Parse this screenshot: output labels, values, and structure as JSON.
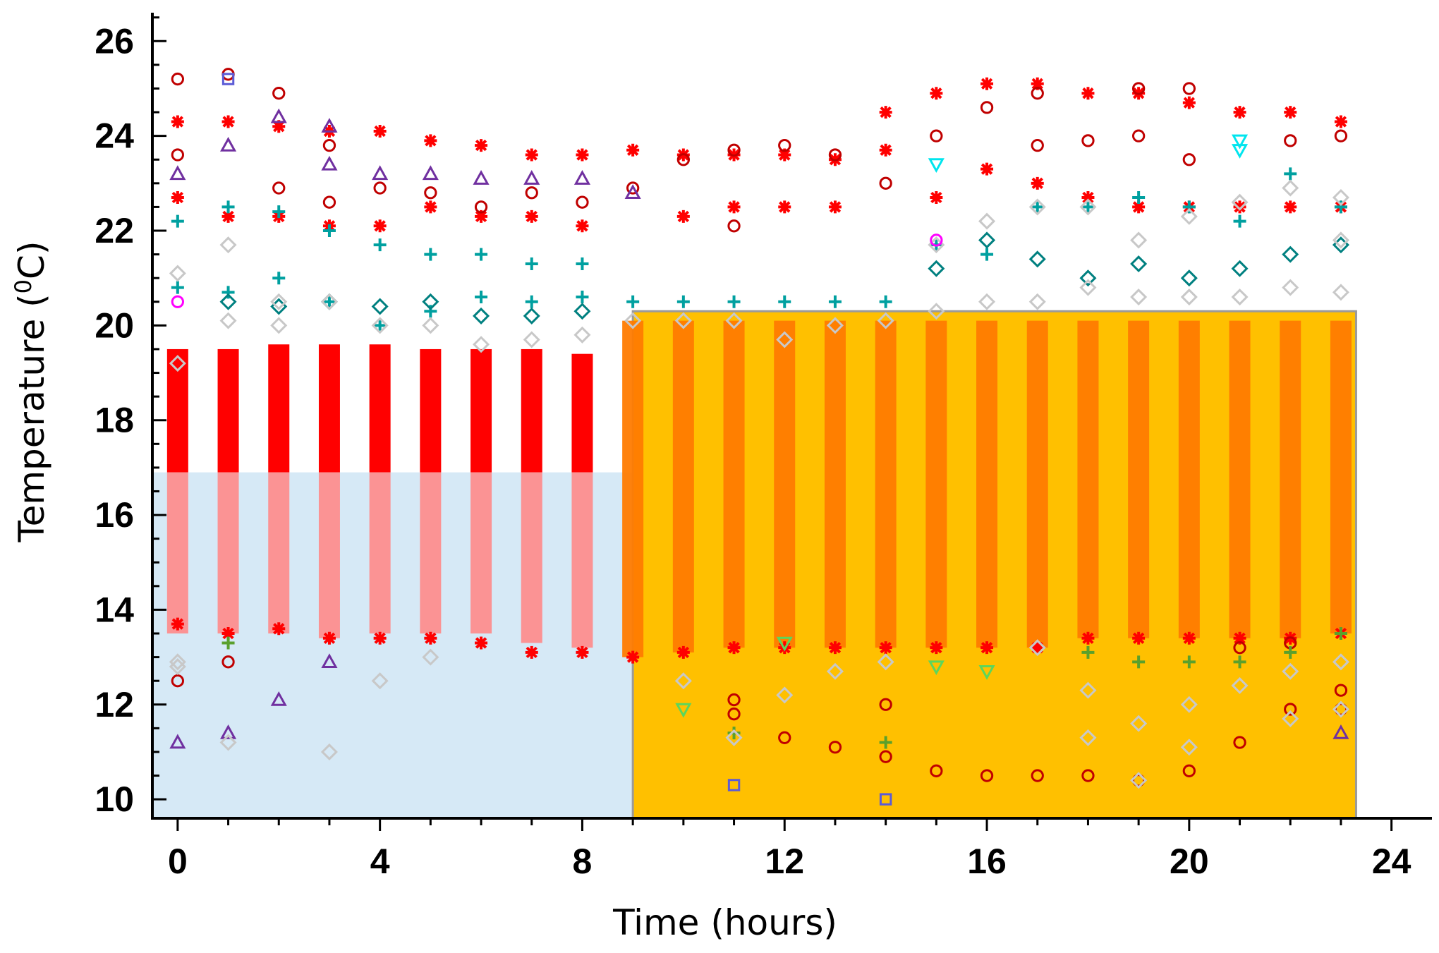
{
  "chart_data": {
    "type": "scatter",
    "title": "",
    "xlabel": "Time (hours)",
    "ylabel_prefix": "Temperature (",
    "ylabel_sup": "0",
    "ylabel_suffix": "C)",
    "xlim": [
      -0.5,
      24.8
    ],
    "ylim": [
      9.6,
      26.6
    ],
    "x_ticks": [
      0,
      4,
      8,
      12,
      16,
      20,
      24
    ],
    "y_ticks": [
      10,
      12,
      14,
      16,
      18,
      20,
      22,
      24,
      26
    ],
    "grid": false,
    "legend": "none",
    "hours": [
      0,
      1,
      2,
      3,
      4,
      5,
      6,
      7,
      8,
      9,
      10,
      11,
      12,
      13,
      14,
      15,
      16,
      17,
      18,
      19,
      20,
      21,
      22,
      23
    ],
    "regions": [
      {
        "x_start": -0.5,
        "x_end": 9.0,
        "y_start": 9.6,
        "y_end": 16.9,
        "color": "#d6e9f6"
      },
      {
        "x_start": 9.0,
        "x_end": 23.3,
        "y_start": 9.6,
        "y_end": 20.3,
        "color": "#ffc000",
        "border": "#9a9a9a"
      }
    ],
    "dense_band": {
      "color_outside": "#ff0000",
      "color_in_cool": "#ff8a8a",
      "color_in_warm": "#ff7b00",
      "low": [
        13.5,
        13.5,
        13.5,
        13.4,
        13.5,
        13.5,
        13.5,
        13.3,
        13.2,
        13.0,
        13.1,
        13.2,
        13.2,
        13.2,
        13.2,
        13.2,
        13.2,
        13.2,
        13.4,
        13.4,
        13.4,
        13.4,
        13.4,
        13.5
      ],
      "high": [
        19.5,
        19.5,
        19.6,
        19.6,
        19.6,
        19.5,
        19.5,
        19.5,
        19.4,
        20.1,
        20.1,
        20.1,
        20.1,
        20.1,
        20.1,
        20.1,
        20.1,
        20.1,
        20.1,
        20.1,
        20.1,
        20.1,
        20.1,
        20.1
      ]
    },
    "series": [
      {
        "marker": "asterisk",
        "color": "#ff0000",
        "values": [
          [
            0,
            24.3
          ],
          [
            0,
            22.7
          ],
          [
            0,
            13.7
          ],
          [
            1,
            24.3
          ],
          [
            1,
            22.3
          ],
          [
            1,
            13.5
          ],
          [
            2,
            24.2
          ],
          [
            2,
            22.3
          ],
          [
            2,
            13.6
          ],
          [
            3,
            24.1
          ],
          [
            3,
            22.1
          ],
          [
            3,
            13.4
          ],
          [
            4,
            24.1
          ],
          [
            4,
            22.1
          ],
          [
            4,
            13.4
          ],
          [
            5,
            23.9
          ],
          [
            5,
            22.5
          ],
          [
            5,
            13.4
          ],
          [
            6,
            23.8
          ],
          [
            6,
            22.3
          ],
          [
            6,
            13.3
          ],
          [
            7,
            23.6
          ],
          [
            7,
            22.3
          ],
          [
            7,
            13.1
          ],
          [
            8,
            23.6
          ],
          [
            8,
            22.1
          ],
          [
            8,
            13.1
          ],
          [
            9,
            23.7
          ],
          [
            9,
            13.0
          ],
          [
            10,
            23.6
          ],
          [
            10,
            22.3
          ],
          [
            10,
            13.1
          ],
          [
            11,
            23.6
          ],
          [
            11,
            22.5
          ],
          [
            11,
            13.2
          ],
          [
            12,
            23.6
          ],
          [
            12,
            22.5
          ],
          [
            12,
            13.2
          ],
          [
            13,
            23.5
          ],
          [
            13,
            22.5
          ],
          [
            13,
            13.2
          ],
          [
            14,
            24.5
          ],
          [
            14,
            23.7
          ],
          [
            14,
            13.2
          ],
          [
            15,
            24.9
          ],
          [
            15,
            22.7
          ],
          [
            15,
            13.2
          ],
          [
            16,
            25.1
          ],
          [
            16,
            23.3
          ],
          [
            16,
            13.2
          ],
          [
            17,
            25.1
          ],
          [
            17,
            23.0
          ],
          [
            17,
            13.2
          ],
          [
            18,
            24.9
          ],
          [
            18,
            22.7
          ],
          [
            18,
            13.4
          ],
          [
            19,
            24.9
          ],
          [
            19,
            22.5
          ],
          [
            19,
            13.4
          ],
          [
            20,
            24.7
          ],
          [
            20,
            22.5
          ],
          [
            20,
            13.4
          ],
          [
            21,
            24.5
          ],
          [
            21,
            22.5
          ],
          [
            21,
            13.4
          ],
          [
            22,
            24.5
          ],
          [
            22,
            22.5
          ],
          [
            22,
            13.4
          ],
          [
            23,
            24.3
          ],
          [
            23,
            22.5
          ],
          [
            23,
            13.5
          ]
        ]
      },
      {
        "marker": "circle",
        "color": "#c00000",
        "values": [
          [
            0,
            25.2
          ],
          [
            0,
            23.6
          ],
          [
            0,
            12.5
          ],
          [
            1,
            25.3
          ],
          [
            1,
            12.9
          ],
          [
            2,
            24.9
          ],
          [
            2,
            22.9
          ],
          [
            3,
            23.8
          ],
          [
            3,
            22.6
          ],
          [
            4,
            22.9
          ],
          [
            5,
            22.8
          ],
          [
            6,
            22.5
          ],
          [
            7,
            22.8
          ],
          [
            8,
            22.6
          ],
          [
            9,
            22.9
          ],
          [
            10,
            23.5
          ],
          [
            11,
            23.7
          ],
          [
            11,
            22.1
          ],
          [
            11,
            12.1
          ],
          [
            11,
            11.8
          ],
          [
            12,
            23.8
          ],
          [
            12,
            11.3
          ],
          [
            13,
            23.6
          ],
          [
            13,
            11.1
          ],
          [
            14,
            23.0
          ],
          [
            14,
            12.0
          ],
          [
            14,
            10.9
          ],
          [
            15,
            24.0
          ],
          [
            15,
            10.6
          ],
          [
            16,
            24.6
          ],
          [
            16,
            10.5
          ],
          [
            17,
            24.9
          ],
          [
            17,
            23.8
          ],
          [
            17,
            10.5
          ],
          [
            18,
            23.9
          ],
          [
            18,
            10.5
          ],
          [
            19,
            25.0
          ],
          [
            19,
            24.0
          ],
          [
            19,
            10.4
          ],
          [
            20,
            25.0
          ],
          [
            20,
            23.5
          ],
          [
            20,
            10.6
          ],
          [
            21,
            11.2
          ],
          [
            21,
            13.2
          ],
          [
            22,
            23.9
          ],
          [
            22,
            11.9
          ],
          [
            22,
            13.3
          ],
          [
            23,
            24.0
          ],
          [
            23,
            12.3
          ],
          [
            23,
            11.9
          ]
        ]
      },
      {
        "marker": "triangle-up",
        "color": "#7030a0",
        "values": [
          [
            0,
            23.2
          ],
          [
            0,
            11.2
          ],
          [
            1,
            23.8
          ],
          [
            1,
            11.4
          ],
          [
            2,
            24.4
          ],
          [
            2,
            12.1
          ],
          [
            3,
            24.2
          ],
          [
            3,
            23.4
          ],
          [
            3,
            12.9
          ],
          [
            4,
            23.2
          ],
          [
            5,
            23.2
          ],
          [
            6,
            23.1
          ],
          [
            7,
            23.1
          ],
          [
            8,
            23.1
          ],
          [
            9,
            22.8
          ],
          [
            23,
            11.4
          ]
        ]
      },
      {
        "marker": "square",
        "color": "#5b5bd6",
        "values": [
          [
            1,
            25.2
          ],
          [
            11,
            10.3
          ],
          [
            14,
            10.0
          ]
        ]
      },
      {
        "marker": "plus",
        "color": "#00a0a0",
        "values": [
          [
            0,
            22.2
          ],
          [
            0,
            20.8
          ],
          [
            1,
            22.5
          ],
          [
            1,
            20.7
          ],
          [
            2,
            22.4
          ],
          [
            2,
            21.0
          ],
          [
            3,
            22.0
          ],
          [
            3,
            20.5
          ],
          [
            4,
            21.7
          ],
          [
            4,
            20.0
          ],
          [
            5,
            21.5
          ],
          [
            5,
            20.3
          ],
          [
            6,
            21.5
          ],
          [
            6,
            20.6
          ],
          [
            7,
            21.3
          ],
          [
            7,
            20.5
          ],
          [
            8,
            21.3
          ],
          [
            8,
            20.6
          ],
          [
            9,
            20.5
          ],
          [
            10,
            20.5
          ],
          [
            11,
            20.5
          ],
          [
            12,
            20.5
          ],
          [
            13,
            20.5
          ],
          [
            14,
            20.5
          ],
          [
            15,
            21.7
          ],
          [
            16,
            21.5
          ],
          [
            17,
            22.5
          ],
          [
            18,
            22.5
          ],
          [
            19,
            22.7
          ],
          [
            20,
            22.5
          ],
          [
            21,
            22.2
          ],
          [
            22,
            23.2
          ],
          [
            23,
            22.5
          ]
        ]
      },
      {
        "marker": "plus",
        "color": "#5aa02c",
        "values": [
          [
            1,
            13.3
          ],
          [
            11,
            11.4
          ],
          [
            14,
            11.2
          ],
          [
            18,
            13.1
          ],
          [
            19,
            12.9
          ],
          [
            20,
            12.9
          ],
          [
            21,
            12.9
          ],
          [
            22,
            13.1
          ],
          [
            23,
            13.5
          ]
        ]
      },
      {
        "marker": "diamond",
        "color": "#008080",
        "values": [
          [
            1,
            20.5
          ],
          [
            2,
            20.4
          ],
          [
            3,
            20.5
          ],
          [
            4,
            20.4
          ],
          [
            5,
            20.5
          ],
          [
            6,
            20.2
          ],
          [
            7,
            20.2
          ],
          [
            8,
            20.3
          ],
          [
            15,
            21.2
          ],
          [
            16,
            21.8
          ],
          [
            17,
            21.4
          ],
          [
            18,
            21.0
          ],
          [
            19,
            21.3
          ],
          [
            20,
            21.0
          ],
          [
            21,
            21.2
          ],
          [
            22,
            21.5
          ],
          [
            23,
            21.7
          ]
        ]
      },
      {
        "marker": "diamond",
        "color": "#c8c8c8",
        "values": [
          [
            0,
            21.1
          ],
          [
            0,
            19.2
          ],
          [
            0,
            12.9
          ],
          [
            0,
            12.8
          ],
          [
            1,
            21.7
          ],
          [
            1,
            20.1
          ],
          [
            1,
            11.2
          ],
          [
            2,
            20.5
          ],
          [
            2,
            20.0
          ],
          [
            3,
            20.5
          ],
          [
            3,
            11.0
          ],
          [
            4,
            20.0
          ],
          [
            4,
            12.5
          ],
          [
            5,
            20.0
          ],
          [
            5,
            13.0
          ],
          [
            6,
            19.6
          ],
          [
            7,
            19.7
          ],
          [
            8,
            19.8
          ],
          [
            9,
            20.1
          ],
          [
            10,
            20.1
          ],
          [
            10,
            12.5
          ],
          [
            11,
            20.1
          ],
          [
            11,
            11.3
          ],
          [
            12,
            19.7
          ],
          [
            12,
            12.2
          ],
          [
            13,
            20.0
          ],
          [
            13,
            12.7
          ],
          [
            14,
            20.1
          ],
          [
            14,
            12.9
          ],
          [
            15,
            20.3
          ],
          [
            15,
            21.7
          ],
          [
            16,
            20.5
          ],
          [
            16,
            22.2
          ],
          [
            17,
            20.5
          ],
          [
            17,
            22.5
          ],
          [
            17,
            13.2
          ],
          [
            18,
            20.8
          ],
          [
            18,
            22.5
          ],
          [
            18,
            12.3
          ],
          [
            18,
            11.3
          ],
          [
            19,
            20.6
          ],
          [
            19,
            21.8
          ],
          [
            19,
            11.6
          ],
          [
            19,
            10.4
          ],
          [
            20,
            20.6
          ],
          [
            20,
            22.3
          ],
          [
            20,
            12.0
          ],
          [
            20,
            11.1
          ],
          [
            21,
            20.6
          ],
          [
            21,
            22.6
          ],
          [
            21,
            12.4
          ],
          [
            22,
            20.8
          ],
          [
            22,
            22.9
          ],
          [
            22,
            12.7
          ],
          [
            22,
            11.7
          ],
          [
            23,
            20.7
          ],
          [
            23,
            22.7
          ],
          [
            23,
            21.8
          ],
          [
            23,
            12.9
          ],
          [
            23,
            11.9
          ]
        ]
      },
      {
        "marker": "triangle-down",
        "color": "#00e5ee",
        "values": [
          [
            15,
            23.4
          ],
          [
            21,
            23.7
          ],
          [
            21,
            23.9
          ]
        ]
      },
      {
        "marker": "triangle-down",
        "color": "#5cd65c",
        "values": [
          [
            10,
            11.9
          ],
          [
            12,
            13.3
          ],
          [
            15,
            12.8
          ],
          [
            16,
            12.7
          ]
        ]
      },
      {
        "marker": "circle",
        "color": "#ff00ff",
        "values": [
          [
            0,
            20.5
          ],
          [
            15,
            21.8
          ]
        ]
      }
    ]
  }
}
